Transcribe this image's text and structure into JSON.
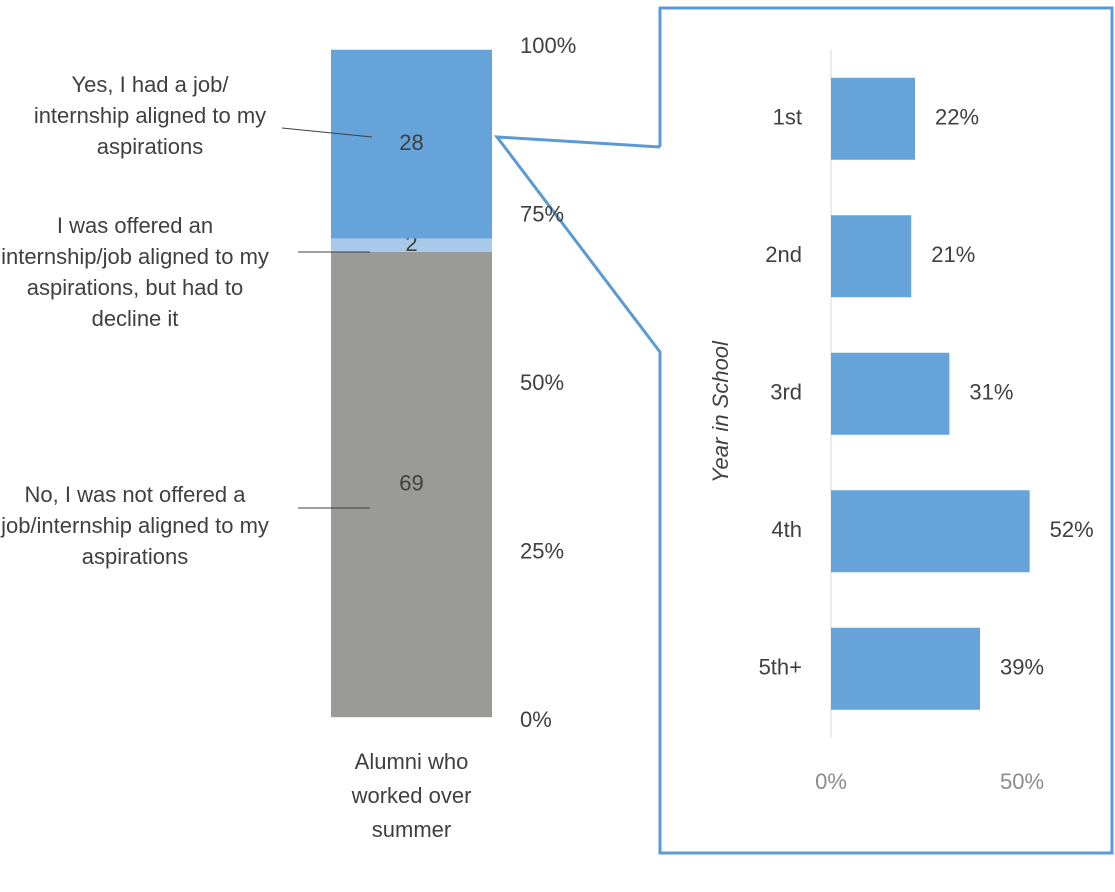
{
  "chart_data": [
    {
      "type": "stacked-bar",
      "categories": [
        "Alumni who worked over summer"
      ],
      "series": [
        {
          "name": "No, I was not offered a job/internship aligned to my aspirations",
          "color": "#9a9b98",
          "values": [
            69
          ]
        },
        {
          "name": "I was offered an internship/job aligned to my aspirations, but had to decline it",
          "color": "#a9c9e9",
          "values": [
            2
          ]
        },
        {
          "name": "Yes, I had a job/ internship aligned to my aspirations",
          "color": "#66a3d8",
          "values": [
            28
          ]
        }
      ],
      "ylim": [
        0,
        100
      ],
      "yticks": [
        {
          "value": 0,
          "label": "0%"
        },
        {
          "value": 25,
          "label": "25%"
        },
        {
          "value": 50,
          "label": "50%"
        },
        {
          "value": 75,
          "label": "75%"
        },
        {
          "value": 100,
          "label": "100%"
        }
      ]
    },
    {
      "type": "hbar",
      "y_label": "Year in School",
      "categories": [
        "1st",
        "2nd",
        "3rd",
        "4th",
        "5th+"
      ],
      "values": [
        22,
        21,
        31,
        52,
        39
      ],
      "value_labels": [
        "22%",
        "21%",
        "31%",
        "52%",
        "39%"
      ],
      "color": "#66a3d8",
      "xlim": [
        0,
        70
      ],
      "xticks": [
        {
          "value": 0,
          "label": "0%"
        },
        {
          "value": 50,
          "label": "50%"
        }
      ]
    }
  ]
}
